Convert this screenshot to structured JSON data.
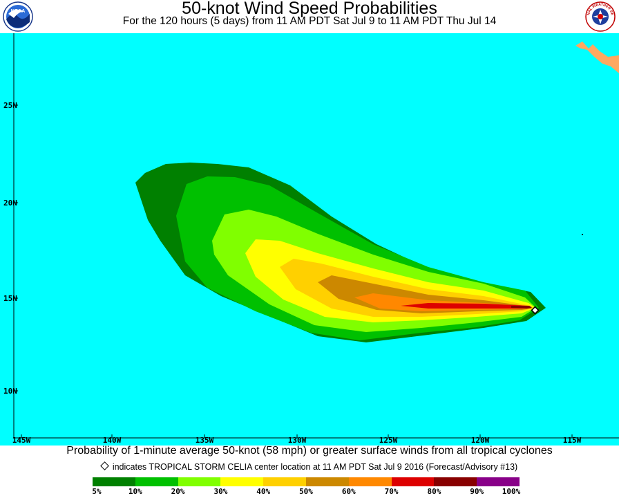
{
  "header": {
    "title": "50-knot Wind Speed Probabilities",
    "subtitle": "For the 120 hours (5 days) from 11 AM PDT Sat Jul 9 to 11 AM PDT Thu Jul 14",
    "left_logo": "noaa-logo",
    "right_logo": "national-weather-service-logo",
    "right_logo_text": "NATIONAL WEATHER SERVICE"
  },
  "map": {
    "ocean_color": "#00ffff",
    "land_color": "#ffa861",
    "lon_labels": [
      "145W",
      "140W",
      "135W",
      "130W",
      "125W",
      "120W",
      "115W"
    ],
    "lat_labels": [
      "25N",
      "20N",
      "15N",
      "10N"
    ]
  },
  "storm": {
    "name": "TROPICAL STORM CELIA",
    "marker_icon": "diamond-icon"
  },
  "caption": "Probability of 1-minute average 50-knot (58 mph) or greater surface winds from all tropical cyclones",
  "storm_note": "indicates TROPICAL STORM CELIA center location at 11 AM PDT Sat Jul 9 2016 (Forecast/Advisory #13)",
  "legend": {
    "colors": [
      "#008000",
      "#00c000",
      "#80ff00",
      "#ffff00",
      "#ffd000",
      "#cc8800",
      "#ff8800",
      "#dd0000",
      "#880000",
      "#880088"
    ],
    "labels": [
      "5%",
      "10%",
      "20%",
      "30%",
      "40%",
      "50%",
      "60%",
      "70%",
      "80%",
      "90%",
      "100%"
    ]
  }
}
